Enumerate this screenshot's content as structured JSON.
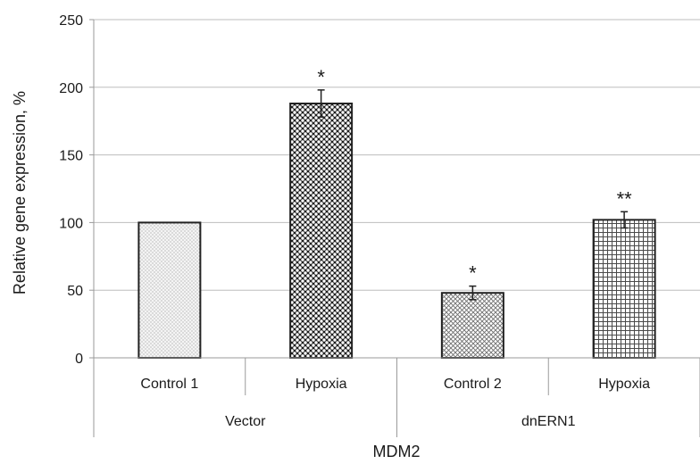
{
  "chart_data": {
    "type": "bar",
    "title": "",
    "xlabel": "MDM2",
    "ylabel": "Relative gene expression, %",
    "ylim": [
      0,
      250
    ],
    "yticks": [
      0,
      50,
      100,
      150,
      200,
      250
    ],
    "grid": true,
    "legend": "none",
    "groups": [
      {
        "name": "Vector",
        "categories": [
          "Control 1",
          "Hypoxia"
        ]
      },
      {
        "name": "dnERN1",
        "categories": [
          "Control 2",
          "Hypoxia"
        ]
      }
    ],
    "categories": [
      "Control 1",
      "Hypoxia",
      "Control 2",
      "Hypoxia"
    ],
    "values": [
      100,
      188,
      48,
      102
    ],
    "errors": [
      0,
      10,
      5,
      6
    ],
    "significance": [
      "",
      "*",
      "*",
      "**"
    ],
    "patterns": [
      "fine-dots",
      "dense-diamonds",
      "crosshatch",
      "grid"
    ]
  }
}
